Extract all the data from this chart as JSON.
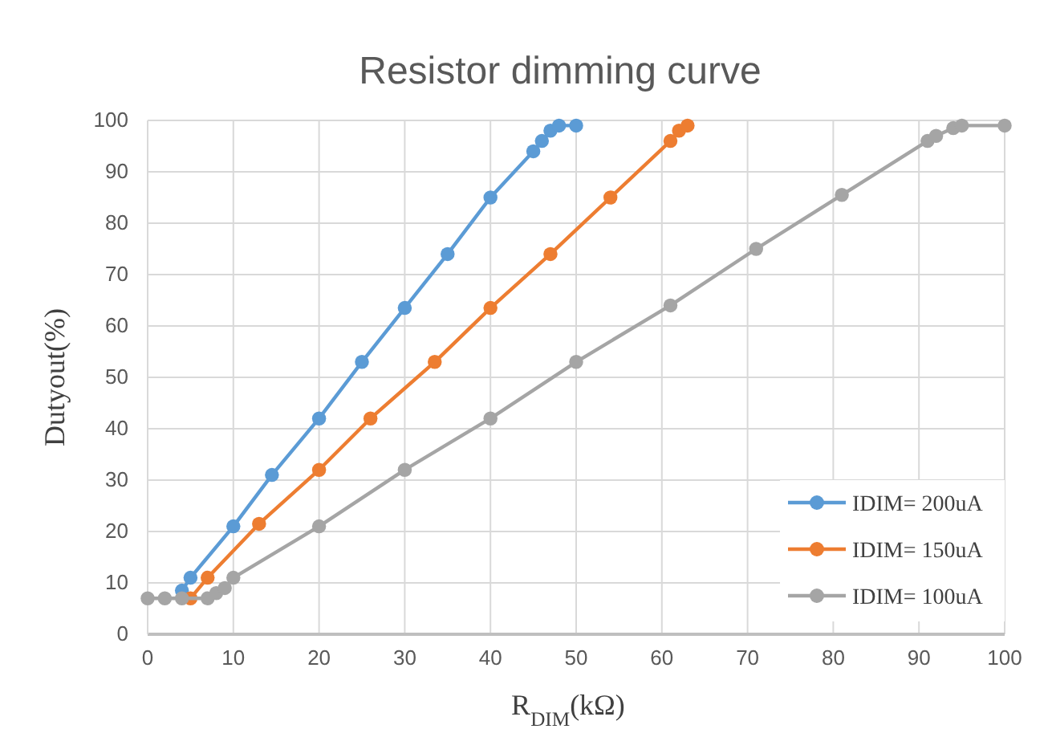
{
  "chart_data": {
    "type": "line",
    "title": "Resistor dimming curve",
    "xlabel": "R$_{DIM}$(kΩ)",
    "ylabel": "Dutyout(%)",
    "xlim": [
      0,
      100
    ],
    "xticks": [
      0,
      10,
      20,
      30,
      40,
      50,
      60,
      70,
      80,
      90,
      100
    ],
    "ylim": [
      0,
      100
    ],
    "yticks": [
      0,
      10,
      20,
      30,
      40,
      50,
      60,
      70,
      80,
      90,
      100
    ],
    "grid": true,
    "legend": "bottom right",
    "marker": "circle",
    "line_style": "solid",
    "series": [
      {
        "name": "IDIM= 200uA",
        "color": "#5b9bd5",
        "x": [
          4,
          5,
          10,
          14.5,
          20,
          25,
          30,
          35,
          40,
          45,
          46,
          47,
          48,
          50
        ],
        "values": [
          8.5,
          11,
          21,
          31,
          42,
          53,
          63.5,
          74,
          85,
          94,
          96,
          98,
          99,
          99
        ]
      },
      {
        "name": "IDIM= 150uA",
        "color": "#ed7d31",
        "x": [
          5,
          7,
          13,
          20,
          26,
          33.5,
          40,
          47,
          54,
          61,
          62,
          63
        ],
        "values": [
          7,
          11,
          21.5,
          32,
          42,
          53,
          63.5,
          74,
          85,
          96,
          98,
          99
        ]
      },
      {
        "name": "IDIM= 100uA",
        "color": "#a5a5a5",
        "x": [
          0,
          2,
          4,
          7,
          8,
          9,
          10,
          20,
          30,
          40,
          50,
          61,
          71,
          81,
          91,
          92,
          94,
          95,
          100
        ],
        "values": [
          7,
          7,
          7,
          7,
          8,
          9,
          11,
          21,
          32,
          42,
          53,
          64,
          75,
          85.5,
          96,
          97,
          98.5,
          99,
          99
        ]
      }
    ]
  }
}
